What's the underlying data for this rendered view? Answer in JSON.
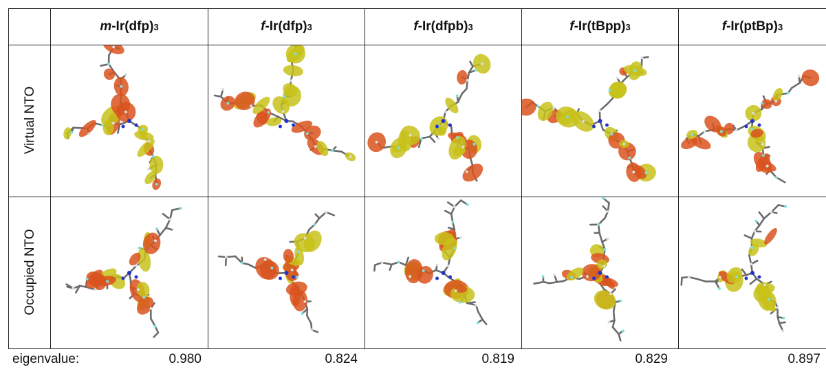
{
  "columns": [
    {
      "prefix": "m",
      "name": "-Ir(dfp)",
      "sub": "3"
    },
    {
      "prefix": "f",
      "name": "-Ir(dfp)",
      "sub": "3"
    },
    {
      "prefix": "f",
      "name": "-Ir(dfpb)",
      "sub": "3"
    },
    {
      "prefix": "f",
      "name": "-Ir(tBpp)",
      "sub": "3"
    },
    {
      "prefix": "f",
      "name": "-Ir(ptBp)",
      "sub": "3"
    }
  ],
  "rows": {
    "virtual": "Virtual NTO",
    "occupied": "Occupied NTO"
  },
  "eigenvalue_label": "eigenvalue:",
  "eigenvalues": [
    "0.980",
    "0.824",
    "0.819",
    "0.829",
    "0.897"
  ],
  "colors": {
    "lobe_red": "#d9541e",
    "lobe_yellow": "#c8c21a",
    "bond_gray": "#6b6b6b",
    "atom_blue": "#2233cc",
    "atom_cyan": "#7fe0e0"
  }
}
